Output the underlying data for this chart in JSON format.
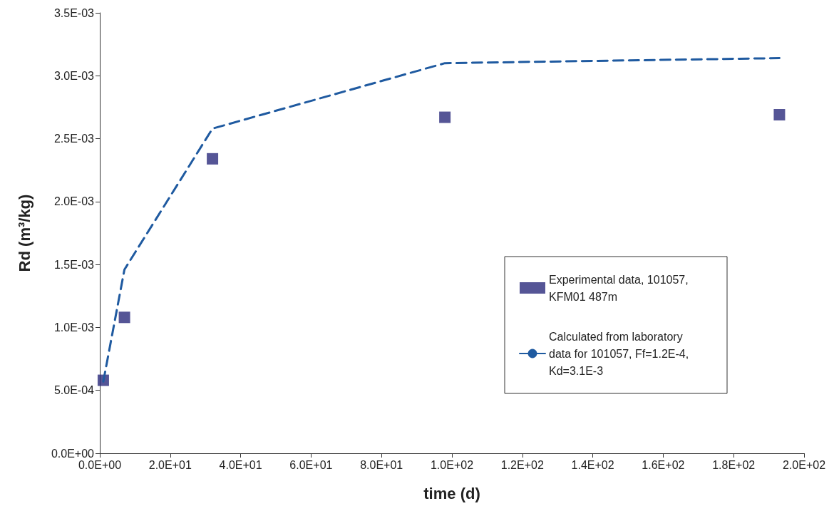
{
  "chart_data": {
    "type": "scatter",
    "xlabel": "time (d)",
    "ylabel": "Rd (m³/kg)",
    "xlim": [
      0,
      200
    ],
    "xticks": [
      {
        "value": 0,
        "label": "0.0E+00"
      },
      {
        "value": 20,
        "label": "2.0E+01"
      },
      {
        "value": 40,
        "label": "4.0E+01"
      },
      {
        "value": 60,
        "label": "6.0E+01"
      },
      {
        "value": 80,
        "label": "8.0E+01"
      },
      {
        "value": 100,
        "label": "1.0E+02"
      },
      {
        "value": 120,
        "label": "1.2E+02"
      },
      {
        "value": 140,
        "label": "1.4E+02"
      },
      {
        "value": 160,
        "label": "1.6E+02"
      },
      {
        "value": 180,
        "label": "1.8E+02"
      },
      {
        "value": 200,
        "label": "2.0E+02"
      }
    ],
    "ylim": [
      0,
      0.0035
    ],
    "yticks": [
      {
        "value": 0,
        "label": "0.0E+00"
      },
      {
        "value": 0.0005,
        "label": "5.0E-04"
      },
      {
        "value": 0.001,
        "label": "1.0E-03"
      },
      {
        "value": 0.0015,
        "label": "1.5E-03"
      },
      {
        "value": 0.002,
        "label": "2.0E-03"
      },
      {
        "value": 0.0025,
        "label": "2.5E-03"
      },
      {
        "value": 0.003,
        "label": "3.0E-03"
      },
      {
        "value": 0.0035,
        "label": "3.5E-03"
      }
    ],
    "series": [
      {
        "name": "Experimental data, 101057, KFM01 487m",
        "color": "#2b2a7c",
        "marker": "square",
        "x": [
          1,
          7,
          32,
          98,
          193
        ],
        "values": [
          0.00058,
          0.00108,
          0.00234,
          0.00267,
          0.00269
        ]
      },
      {
        "type": "line",
        "name": "Calculated from laboratory data for 101057, Ff=1.2E-4, Kd=3.1E-3",
        "color": "#1f5aa0",
        "line_style": "dashed",
        "marker": "none",
        "x": [
          1,
          7,
          32,
          98,
          193
        ],
        "values": [
          0.00057,
          0.00146,
          0.00258,
          0.0031,
          0.00314
        ]
      }
    ],
    "grid": false,
    "legend": "right"
  }
}
